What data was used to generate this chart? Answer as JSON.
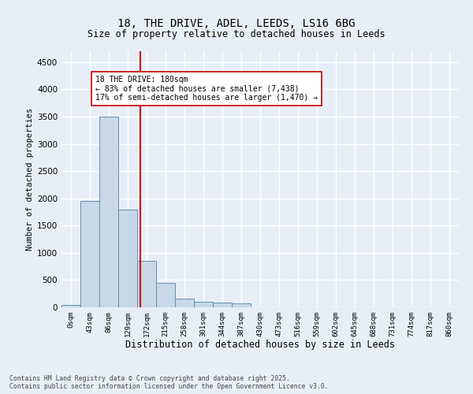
{
  "title1": "18, THE DRIVE, ADEL, LEEDS, LS16 6BG",
  "title2": "Size of property relative to detached houses in Leeds",
  "xlabel": "Distribution of detached houses by size in Leeds",
  "ylabel": "Number of detached properties",
  "bar_labels": [
    "0sqm",
    "43sqm",
    "86sqm",
    "129sqm",
    "172sqm",
    "215sqm",
    "258sqm",
    "301sqm",
    "344sqm",
    "387sqm",
    "430sqm",
    "473sqm",
    "516sqm",
    "559sqm",
    "602sqm",
    "645sqm",
    "688sqm",
    "731sqm",
    "774sqm",
    "817sqm",
    "860sqm"
  ],
  "bar_values": [
    50,
    1950,
    3500,
    1800,
    850,
    450,
    155,
    100,
    80,
    70,
    5,
    5,
    5,
    5,
    5,
    5,
    5,
    5,
    5,
    5,
    5
  ],
  "bar_color": "#c8d8e8",
  "bar_edge_color": "#6090b0",
  "ylim": [
    0,
    4700
  ],
  "yticks": [
    0,
    500,
    1000,
    1500,
    2000,
    2500,
    3000,
    3500,
    4000,
    4500
  ],
  "vline_x": 4.18,
  "vline_color": "#cc0000",
  "annotation_text": "18 THE DRIVE: 180sqm\n← 83% of detached houses are smaller (7,438)\n17% of semi-detached houses are larger (1,470) →",
  "annotation_box_color": "#ffffff",
  "annotation_box_edge": "#cc0000",
  "footer1": "Contains HM Land Registry data © Crown copyright and database right 2025.",
  "footer2": "Contains public sector information licensed under the Open Government Licence v3.0.",
  "bg_color": "#e8eef8",
  "grid_color": "#ffffff"
}
